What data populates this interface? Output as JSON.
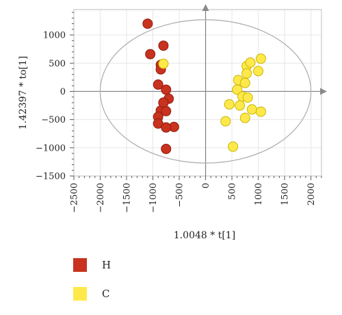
{
  "chart_data": {
    "type": "scatter",
    "xlabel": "1.0048 * t[1]",
    "ylabel": "1.42397 * to[1]",
    "xlim": [
      -2500,
      2200
    ],
    "ylim": [
      -1500,
      1450
    ],
    "x_ticks": [
      -2500,
      -2000,
      -1500,
      -1000,
      -500,
      0,
      500,
      1000,
      1500,
      2000
    ],
    "y_ticks": [
      -1500,
      -1000,
      -500,
      0,
      500,
      1000
    ],
    "grid": true,
    "legend_position": "bottom-left",
    "ellipse": {
      "center": [
        0,
        0
      ],
      "rx": 2000,
      "ry": 1270
    },
    "series": [
      {
        "name": "H",
        "color": "#c8321e",
        "points": [
          [
            -1100,
            1200
          ],
          [
            -1050,
            660
          ],
          [
            -800,
            810
          ],
          [
            -850,
            470
          ],
          [
            -850,
            390
          ],
          [
            -900,
            120
          ],
          [
            -750,
            30
          ],
          [
            -700,
            -130
          ],
          [
            -800,
            -200
          ],
          [
            -850,
            -340
          ],
          [
            -750,
            -350
          ],
          [
            -900,
            -450
          ],
          [
            -900,
            -570
          ],
          [
            -600,
            -630
          ],
          [
            -750,
            -640
          ],
          [
            -750,
            -1020
          ],
          [
            -800,
            -200
          ]
        ]
      },
      {
        "name": "C",
        "color": "#ffe94a",
        "points": [
          [
            -800,
            490
          ],
          [
            780,
            450
          ],
          [
            850,
            510
          ],
          [
            1050,
            580
          ],
          [
            1000,
            360
          ],
          [
            780,
            320
          ],
          [
            620,
            200
          ],
          [
            750,
            150
          ],
          [
            600,
            30
          ],
          [
            700,
            -90
          ],
          [
            800,
            -110
          ],
          [
            880,
            -320
          ],
          [
            650,
            -250
          ],
          [
            1050,
            -360
          ],
          [
            450,
            -230
          ],
          [
            750,
            -470
          ],
          [
            380,
            -530
          ],
          [
            520,
            -980
          ]
        ]
      }
    ]
  }
}
